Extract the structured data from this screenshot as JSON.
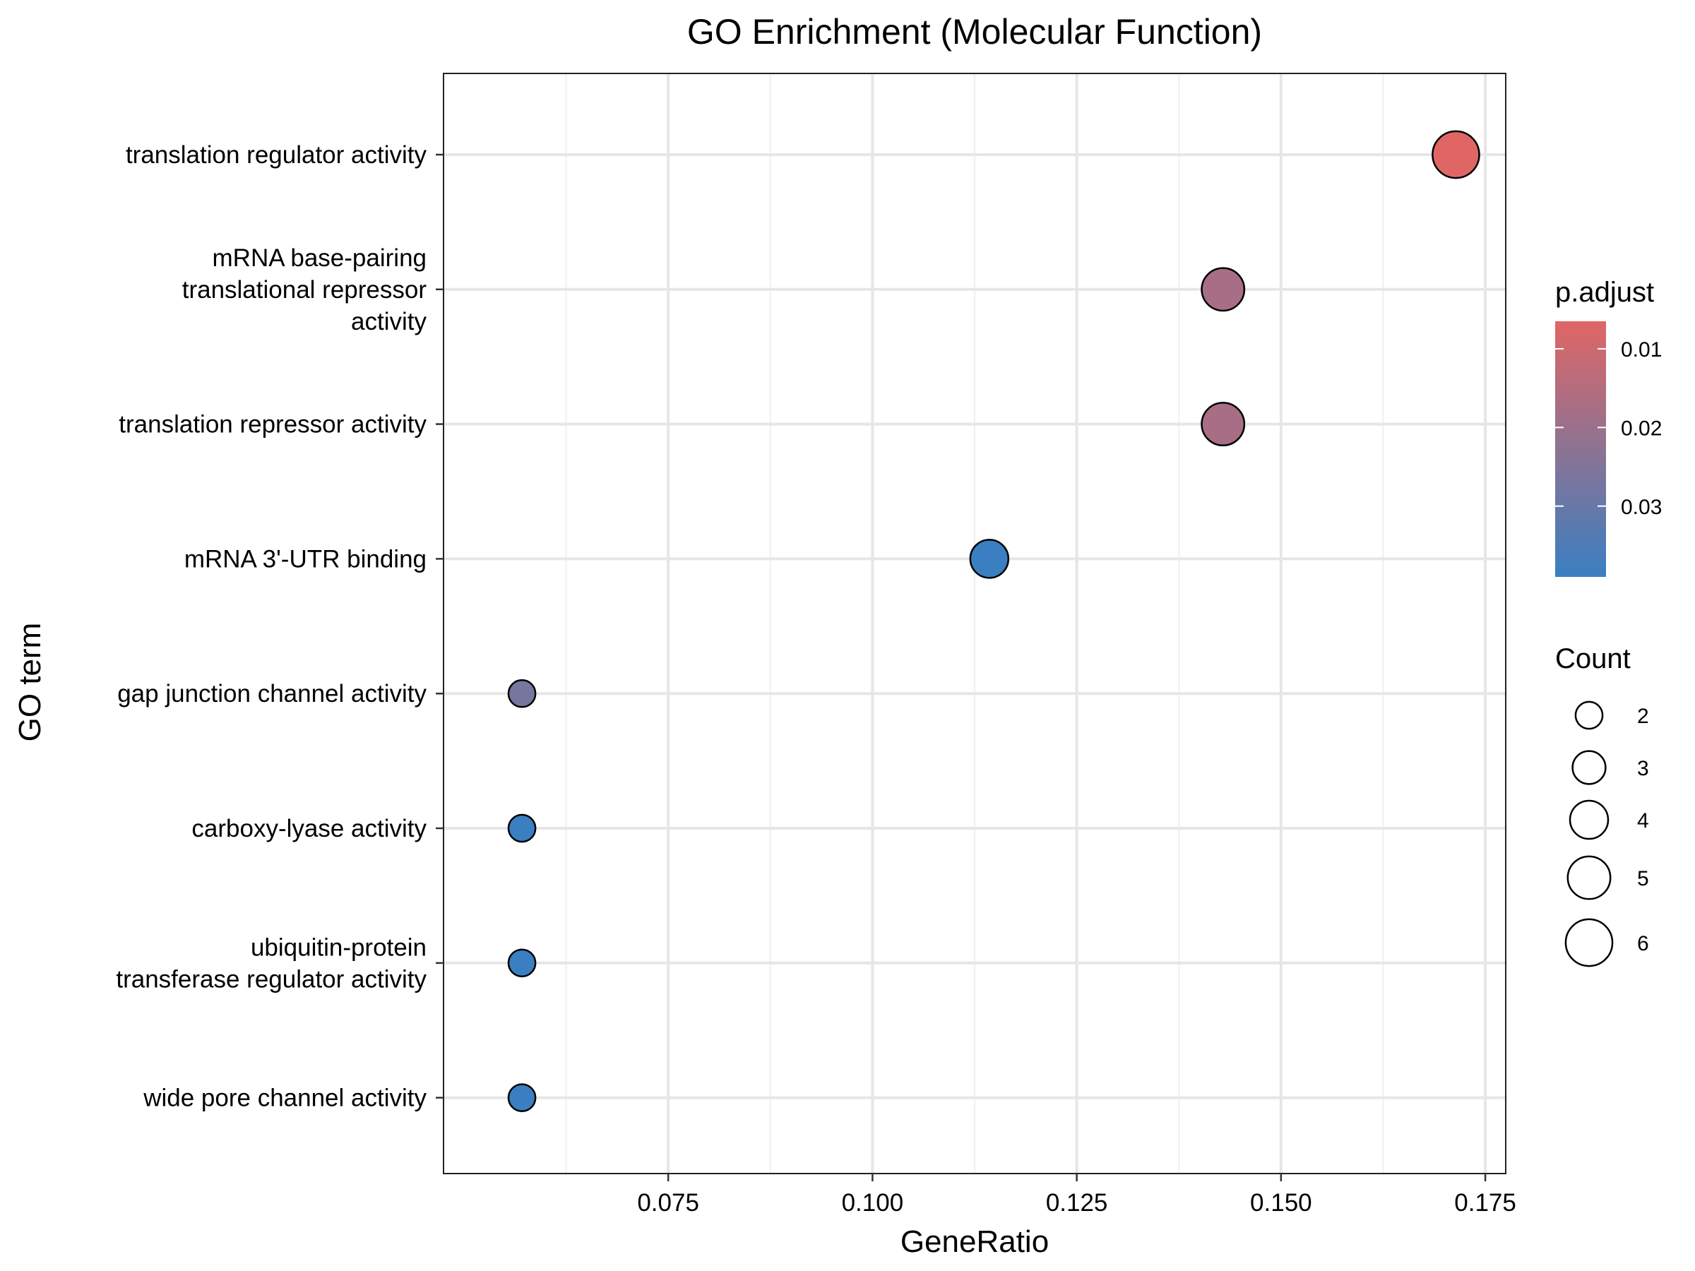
{
  "chart_data": {
    "type": "scatter",
    "title": "GO Enrichment (Molecular Function)",
    "xlabel": "GeneRatio",
    "ylabel": "GO term",
    "xlim": [
      0.0475,
      0.1775
    ],
    "x_ticks": [
      {
        "value": 0.075,
        "label": "0.075"
      },
      {
        "value": 0.1,
        "label": "0.100"
      },
      {
        "value": 0.125,
        "label": "0.125"
      },
      {
        "value": 0.15,
        "label": "0.150"
      },
      {
        "value": 0.175,
        "label": "0.175"
      }
    ],
    "x_minor": [
      0.0625,
      0.0875,
      0.1125,
      0.1375,
      0.1625
    ],
    "categories": [
      [
        "translation regulator activity"
      ],
      [
        "mRNA base-pairing",
        "translational repressor",
        "activity"
      ],
      [
        "translation repressor activity"
      ],
      [
        "mRNA 3'-UTR binding"
      ],
      [
        "gap junction channel activity"
      ],
      [
        "carboxy-lyase activity"
      ],
      [
        "ubiquitin-protein",
        "transferase regulator activity"
      ],
      [
        "wide pore channel activity"
      ]
    ],
    "points": [
      {
        "gene_ratio": 0.1714,
        "count": 6,
        "p_adjust": 0.0065
      },
      {
        "gene_ratio": 0.1429,
        "count": 5,
        "p_adjust": 0.0175
      },
      {
        "gene_ratio": 0.1429,
        "count": 5,
        "p_adjust": 0.0175
      },
      {
        "gene_ratio": 0.1143,
        "count": 4,
        "p_adjust": 0.039
      },
      {
        "gene_ratio": 0.0571,
        "count": 2,
        "p_adjust": 0.027
      },
      {
        "gene_ratio": 0.0571,
        "count": 2,
        "p_adjust": 0.039
      },
      {
        "gene_ratio": 0.0571,
        "count": 2,
        "p_adjust": 0.039
      },
      {
        "gene_ratio": 0.0571,
        "count": 2,
        "p_adjust": 0.039
      }
    ],
    "color_legend": {
      "title": "p.adjust",
      "range": [
        0.0065,
        0.039
      ],
      "low_color": "#e06666",
      "high_color": "#3a7fc1",
      "ticks": [
        {
          "value": 0.01,
          "label": "0.01"
        },
        {
          "value": 0.02,
          "label": "0.02"
        },
        {
          "value": 0.03,
          "label": "0.03"
        }
      ]
    },
    "size_legend": {
      "title": "Count",
      "entries": [
        {
          "count": 2,
          "label": "2"
        },
        {
          "count": 3,
          "label": "3"
        },
        {
          "count": 4,
          "label": "4"
        },
        {
          "count": 5,
          "label": "5"
        },
        {
          "count": 6,
          "label": "6"
        }
      ]
    },
    "grid": true
  }
}
